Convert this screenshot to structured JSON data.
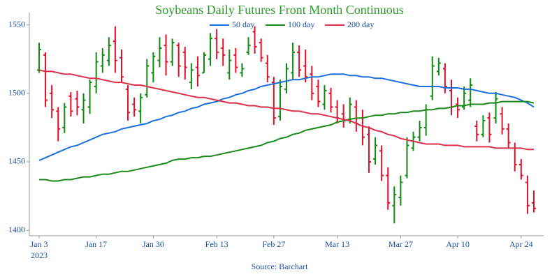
{
  "chart_data": {
    "type": "ohlc",
    "title": "Soybeans Daily Futures Front Month Continuous",
    "source": "Source: Barchart",
    "x_sublabel": "2023",
    "categories": [
      "Jan 3",
      null,
      null,
      null,
      null,
      null,
      null,
      null,
      null,
      "Jan 17",
      null,
      null,
      null,
      null,
      null,
      null,
      null,
      null,
      "Jan 30",
      null,
      null,
      null,
      null,
      null,
      null,
      null,
      null,
      null,
      "Feb 13",
      null,
      null,
      null,
      null,
      null,
      null,
      null,
      null,
      "Feb 27",
      null,
      null,
      null,
      null,
      null,
      null,
      null,
      null,
      null,
      "Mar 13",
      null,
      null,
      null,
      null,
      null,
      null,
      null,
      null,
      null,
      "Mar 27",
      null,
      null,
      null,
      null,
      null,
      null,
      null,
      null,
      "Apr 10",
      null,
      null,
      null,
      null,
      null,
      null,
      null,
      null,
      null,
      "Apr 24",
      null,
      null
    ],
    "open": [
      1517,
      1528,
      1500,
      1487,
      1475,
      1498,
      1496,
      1488,
      1490,
      1505,
      1520,
      1524,
      1538,
      1526,
      1503,
      1492,
      1487,
      1499,
      1515,
      1524,
      1535,
      1523,
      1535,
      1530,
      1508,
      1519,
      1515,
      1525,
      1540,
      1533,
      1515,
      1528,
      1515,
      1530,
      1545,
      1537,
      1522,
      1508,
      1483,
      1503,
      1515,
      1530,
      1520,
      1514,
      1505,
      1492,
      1500,
      1490,
      1485,
      1481,
      1490,
      1482,
      1470,
      1452,
      1458,
      1440,
      1418,
      1424,
      1440,
      1460,
      1468,
      1475,
      1498,
      1516,
      1518,
      1502,
      1492,
      1490,
      1495,
      1476,
      1470,
      1482,
      1482,
      1485,
      1474,
      1460,
      1448,
      1435,
      1420
    ],
    "high": [
      1537,
      1530,
      1506,
      1490,
      1493,
      1501,
      1502,
      1500,
      1510,
      1530,
      1533,
      1541,
      1549,
      1532,
      1506,
      1497,
      1500,
      1525,
      1530,
      1541,
      1543,
      1540,
      1537,
      1534,
      1522,
      1527,
      1530,
      1544,
      1547,
      1540,
      1532,
      1533,
      1522,
      1541,
      1549,
      1540,
      1528,
      1512,
      1510,
      1522,
      1537,
      1535,
      1532,
      1520,
      1510,
      1506,
      1504,
      1495,
      1492,
      1497,
      1495,
      1488,
      1476,
      1468,
      1462,
      1446,
      1432,
      1440,
      1468,
      1472,
      1480,
      1492,
      1527,
      1526,
      1522,
      1510,
      1497,
      1505,
      1511,
      1480,
      1484,
      1486,
      1501,
      1490,
      1478,
      1464,
      1452,
      1440,
      1429
    ],
    "low": [
      1515,
      1490,
      1482,
      1465,
      1471,
      1483,
      1484,
      1478,
      1485,
      1500,
      1515,
      1520,
      1515,
      1508,
      1480,
      1483,
      1478,
      1497,
      1508,
      1519,
      1513,
      1520,
      1512,
      1510,
      1503,
      1505,
      1515,
      1520,
      1525,
      1520,
      1510,
      1515,
      1512,
      1528,
      1529,
      1523,
      1508,
      1477,
      1480,
      1500,
      1510,
      1512,
      1508,
      1495,
      1490,
      1488,
      1486,
      1478,
      1475,
      1478,
      1472,
      1462,
      1442,
      1448,
      1436,
      1415,
      1405,
      1418,
      1438,
      1458,
      1465,
      1469,
      1495,
      1513,
      1500,
      1484,
      1482,
      1488,
      1490,
      1465,
      1468,
      1464,
      1478,
      1470,
      1460,
      1443,
      1437,
      1412,
      1413
    ],
    "close": [
      1532,
      1495,
      1488,
      1474,
      1490,
      1487,
      1490,
      1495,
      1508,
      1523,
      1528,
      1535,
      1524,
      1512,
      1486,
      1488,
      1497,
      1520,
      1527,
      1533,
      1523,
      1537,
      1520,
      1519,
      1517,
      1513,
      1528,
      1540,
      1530,
      1528,
      1524,
      1519,
      1518,
      1535,
      1534,
      1526,
      1512,
      1482,
      1505,
      1518,
      1530,
      1517,
      1512,
      1500,
      1494,
      1502,
      1490,
      1482,
      1480,
      1492,
      1478,
      1468,
      1450,
      1462,
      1440,
      1420,
      1426,
      1435,
      1462,
      1468,
      1475,
      1488,
      1520,
      1522,
      1505,
      1490,
      1488,
      1500,
      1506,
      1470,
      1480,
      1470,
      1496,
      1474,
      1464,
      1448,
      1440,
      1418,
      1416
    ],
    "up_color": "#108a10",
    "down_color": "#e0102a",
    "series": [
      {
        "name": "50 day",
        "color": "#1a6fdf",
        "values": [
          1451,
          1453,
          1455,
          1457,
          1459,
          1461,
          1462,
          1464,
          1466,
          1468,
          1470,
          1471,
          1472,
          1474,
          1475,
          1476,
          1477,
          1478,
          1480,
          1481,
          1483,
          1484,
          1486,
          1487,
          1489,
          1490,
          1492,
          1493,
          1494,
          1496,
          1497,
          1499,
          1500,
          1502,
          1503,
          1505,
          1506,
          1507,
          1508,
          1509,
          1510,
          1510,
          1511,
          1512,
          1512,
          1513,
          1514,
          1514,
          1514,
          1513,
          1513,
          1512,
          1512,
          1511,
          1511,
          1510,
          1509,
          1508,
          1507,
          1506,
          1505,
          1505,
          1505,
          1505,
          1504,
          1504,
          1504,
          1503,
          1503,
          1502,
          1501,
          1500,
          1500,
          1499,
          1498,
          1497,
          1495,
          1493,
          1490
        ]
      },
      {
        "name": "100 day",
        "color": "#1a8a1a",
        "values": [
          1437,
          1437,
          1436,
          1436,
          1437,
          1437,
          1438,
          1439,
          1439,
          1440,
          1441,
          1441,
          1442,
          1443,
          1443,
          1444,
          1445,
          1446,
          1447,
          1448,
          1449,
          1451,
          1452,
          1452,
          1453,
          1453,
          1454,
          1454,
          1455,
          1456,
          1457,
          1458,
          1459,
          1460,
          1461,
          1462,
          1464,
          1465,
          1467,
          1468,
          1470,
          1471,
          1473,
          1474,
          1475,
          1476,
          1477,
          1479,
          1480,
          1481,
          1482,
          1482,
          1483,
          1484,
          1484,
          1485,
          1485,
          1486,
          1486,
          1487,
          1487,
          1488,
          1488,
          1489,
          1489,
          1490,
          1491,
          1491,
          1492,
          1492,
          1492,
          1493,
          1493,
          1494,
          1494,
          1494,
          1494,
          1494,
          1493
        ]
      },
      {
        "name": "200 day",
        "color": "#dc2f4a",
        "values": [
          1517,
          1516,
          1516,
          1515,
          1514,
          1514,
          1513,
          1512,
          1511,
          1511,
          1510,
          1509,
          1508,
          1508,
          1507,
          1506,
          1506,
          1505,
          1504,
          1503,
          1502,
          1501,
          1500,
          1499,
          1498,
          1497,
          1497,
          1496,
          1495,
          1494,
          1493,
          1493,
          1492,
          1491,
          1491,
          1490,
          1490,
          1489,
          1489,
          1488,
          1487,
          1487,
          1486,
          1485,
          1485,
          1484,
          1483,
          1482,
          1481,
          1480,
          1478,
          1476,
          1475,
          1473,
          1472,
          1470,
          1469,
          1467,
          1466,
          1465,
          1464,
          1463,
          1463,
          1463,
          1462,
          1462,
          1462,
          1461,
          1461,
          1461,
          1461,
          1461,
          1460,
          1460,
          1460,
          1460,
          1460,
          1459,
          1459
        ]
      }
    ],
    "ylim": [
      1396,
      1559
    ],
    "yticks": [
      1400,
      1450,
      1500,
      1550
    ],
    "legend": "top"
  }
}
